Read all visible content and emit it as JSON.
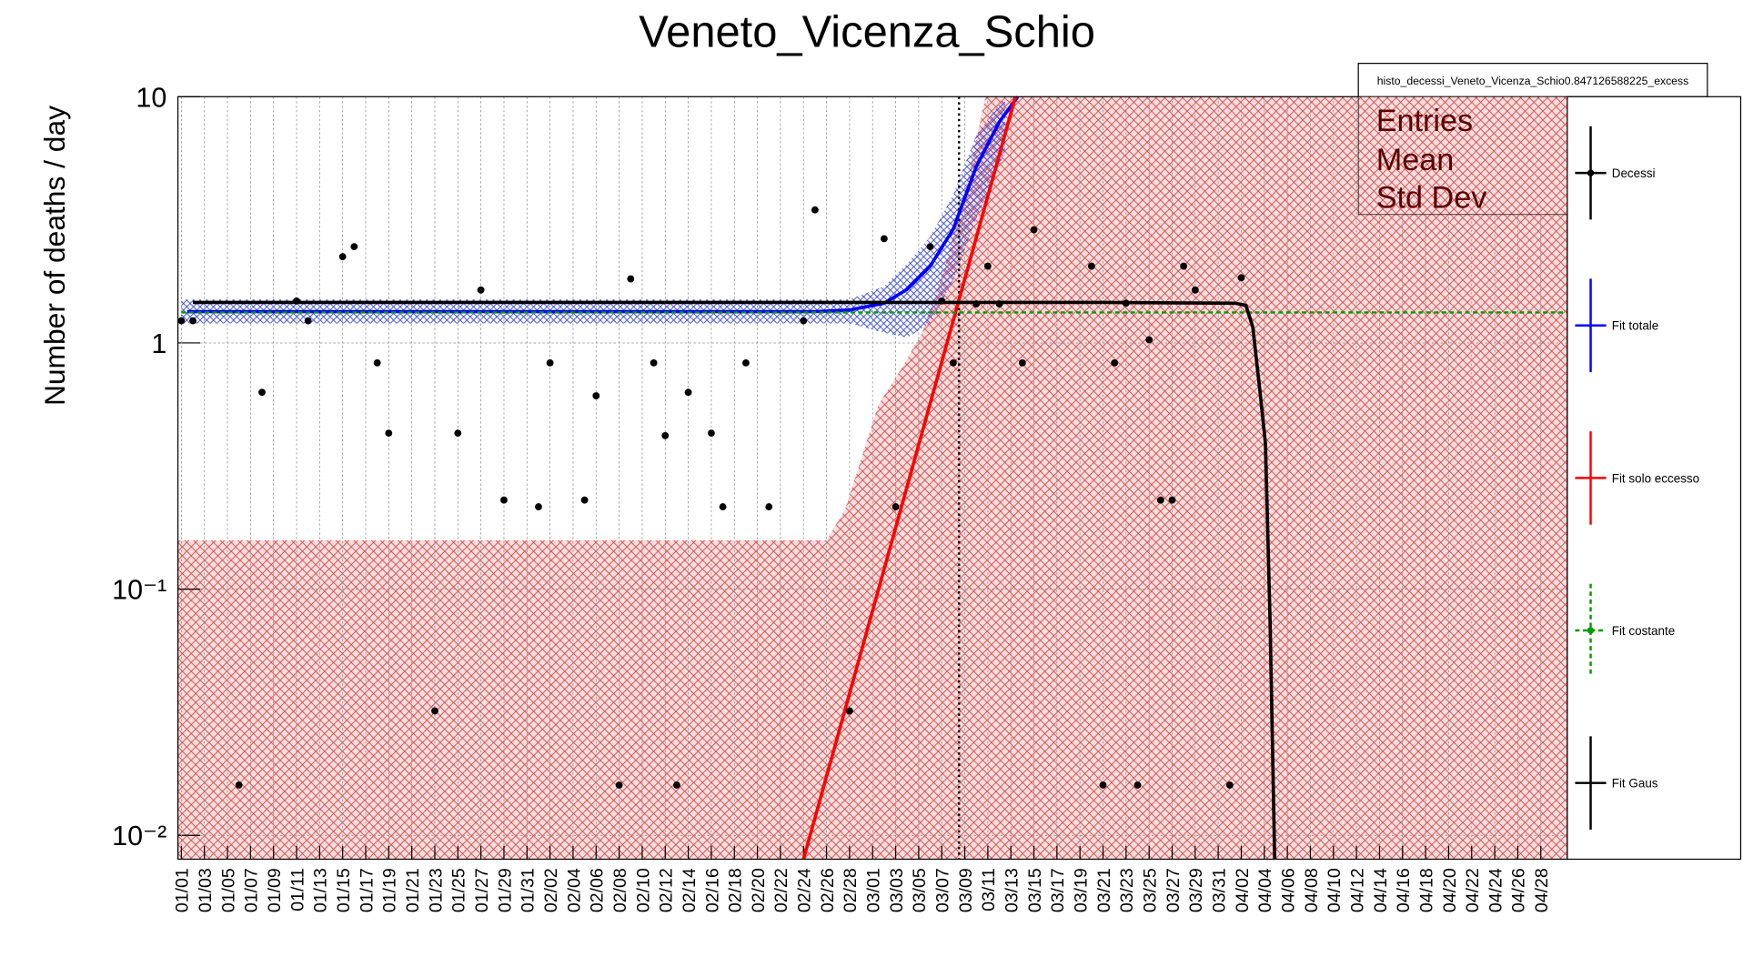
{
  "chart_data": {
    "type": "scatter",
    "title": "Veneto_Vicenza_Schio",
    "y_label": "Number of deaths / day",
    "log_y": true,
    "grid": true,
    "legend_position": "right",
    "xlim": [
      -0.3,
      120.3
    ],
    "ylim": [
      0.008,
      10
    ],
    "yticks": [
      {
        "value": 0.01,
        "label": "10⁻²"
      },
      {
        "value": 0.1,
        "label": "10⁻¹"
      },
      1,
      10
    ],
    "xticks": [
      {
        "value": 0,
        "label": "01/01"
      },
      {
        "value": 2,
        "label": "01/03"
      },
      {
        "value": 4,
        "label": "01/05"
      },
      {
        "value": 6,
        "label": "01/07"
      },
      {
        "value": 8,
        "label": "01/09"
      },
      {
        "value": 10,
        "label": "01/11"
      },
      {
        "value": 12,
        "label": "01/13"
      },
      {
        "value": 14,
        "label": "01/15"
      },
      {
        "value": 16,
        "label": "01/17"
      },
      {
        "value": 18,
        "label": "01/19"
      },
      {
        "value": 20,
        "label": "01/21"
      },
      {
        "value": 22,
        "label": "01/23"
      },
      {
        "value": 24,
        "label": "01/25"
      },
      {
        "value": 26,
        "label": "01/27"
      },
      {
        "value": 28,
        "label": "01/29"
      },
      {
        "value": 30,
        "label": "01/31"
      },
      {
        "value": 32,
        "label": "02/02"
      },
      {
        "value": 34,
        "label": "02/04"
      },
      {
        "value": 36,
        "label": "02/06"
      },
      {
        "value": 38,
        "label": "02/08"
      },
      {
        "value": 40,
        "label": "02/10"
      },
      {
        "value": 42,
        "label": "02/12"
      },
      {
        "value": 44,
        "label": "02/14"
      },
      {
        "value": 46,
        "label": "02/16"
      },
      {
        "value": 48,
        "label": "02/18"
      },
      {
        "value": 50,
        "label": "02/20"
      },
      {
        "value": 52,
        "label": "02/22"
      },
      {
        "value": 54,
        "label": "02/24"
      },
      {
        "value": 56,
        "label": "02/26"
      },
      {
        "value": 58,
        "label": "02/28"
      },
      {
        "value": 60,
        "label": "03/01"
      },
      {
        "value": 62,
        "label": "03/03"
      },
      {
        "value": 64,
        "label": "03/05"
      },
      {
        "value": 66,
        "label": "03/07"
      },
      {
        "value": 68,
        "label": "03/09"
      },
      {
        "value": 70,
        "label": "03/11"
      },
      {
        "value": 72,
        "label": "03/13"
      },
      {
        "value": 74,
        "label": "03/15"
      },
      {
        "value": 76,
        "label": "03/17"
      },
      {
        "value": 78,
        "label": "03/19"
      },
      {
        "value": 80,
        "label": "03/21"
      },
      {
        "value": 82,
        "label": "03/23"
      },
      {
        "value": 84,
        "label": "03/25"
      },
      {
        "value": 86,
        "label": "03/27"
      },
      {
        "value": 88,
        "label": "03/29"
      },
      {
        "value": 90,
        "label": "03/31"
      },
      {
        "value": 92,
        "label": "04/02"
      },
      {
        "value": 94,
        "label": "04/04"
      },
      {
        "value": 96,
        "label": "04/06"
      },
      {
        "value": 98,
        "label": "04/08"
      },
      {
        "value": 100,
        "label": "04/10"
      },
      {
        "value": 102,
        "label": "04/12"
      },
      {
        "value": 104,
        "label": "04/14"
      },
      {
        "value": 106,
        "label": "04/16"
      },
      {
        "value": 108,
        "label": "04/18"
      },
      {
        "value": 110,
        "label": "04/20"
      },
      {
        "value": 112,
        "label": "04/22"
      },
      {
        "value": 114,
        "label": "04/24"
      },
      {
        "value": 116,
        "label": "04/26"
      },
      {
        "value": 118,
        "label": "04/28"
      }
    ],
    "bands": [
      {
        "color": "#d03030",
        "x": [
          -0.3,
          56,
          57.6,
          60.5,
          62.6,
          64.3,
          66.3,
          68.3,
          69.8,
          120.3
        ],
        "upper": [
          0.158,
          0.158,
          0.21,
          0.56,
          0.8,
          1.1,
          2.05,
          4.7,
          10,
          10
        ]
      },
      {
        "color": "#3040d0",
        "x": [
          0,
          20,
          40,
          58,
          61,
          63,
          65,
          67,
          69,
          71.5
        ],
        "upper": [
          1.5,
          1.5,
          1.5,
          1.5,
          1.7,
          2.1,
          2.7,
          4,
          7,
          10
        ],
        "lower": [
          1.2,
          1.2,
          1.2,
          1.2,
          1.1,
          1.05,
          1.2,
          1.8,
          3.2,
          6
        ]
      }
    ],
    "vline": 67.5,
    "series": [
      {
        "name": "Decessi",
        "style": "points",
        "color": "#000000",
        "x": [
          0,
          1,
          5,
          7,
          10,
          11,
          14,
          15,
          17,
          18,
          22,
          24,
          26,
          28,
          31,
          32,
          35,
          36,
          38,
          39,
          41,
          42,
          43,
          44,
          46,
          47,
          49,
          51,
          54,
          55,
          58,
          61,
          62,
          65,
          66,
          67,
          69,
          70,
          71,
          73,
          74,
          79,
          80,
          81,
          82,
          83,
          84,
          85,
          86,
          87,
          88,
          91,
          92
        ],
        "values": [
          1.23,
          1.23,
          0.016,
          0.63,
          1.48,
          1.23,
          2.24,
          2.46,
          0.83,
          0.43,
          0.032,
          0.43,
          1.64,
          0.23,
          0.216,
          0.83,
          0.23,
          0.61,
          0.016,
          1.82,
          0.83,
          0.42,
          0.016,
          0.63,
          0.43,
          0.216,
          0.83,
          0.216,
          1.23,
          3.47,
          0.032,
          2.65,
          0.216,
          2.46,
          1.48,
          0.83,
          1.44,
          2.05,
          1.44,
          0.83,
          2.88,
          2.05,
          0.016,
          0.83,
          1.45,
          0.016,
          1.03,
          0.23,
          0.23,
          2.05,
          1.64,
          0.016,
          1.84
        ]
      },
      {
        "name": "Fit totale",
        "style": "line",
        "color": "#0000ff",
        "x": [
          0.5,
          20,
          40,
          55,
          58,
          61,
          63,
          65,
          67,
          69,
          71,
          72.6
        ],
        "values": [
          1.34,
          1.34,
          1.34,
          1.34,
          1.36,
          1.45,
          1.65,
          2.05,
          2.9,
          5.2,
          7.9,
          10
        ]
      },
      {
        "name": "Fit solo eccesso",
        "style": "line",
        "color": "#ff0000",
        "x": [
          54,
          72.4
        ],
        "values": [
          0.008,
          10
        ]
      },
      {
        "name": "Fit costante",
        "style": "dashed",
        "color": "#009900",
        "x": [
          0,
          120.3
        ],
        "values": [
          1.33,
          1.33
        ]
      },
      {
        "name": "Fit Gaus",
        "style": "line",
        "color": "#000000",
        "x": [
          1,
          40,
          80,
          91.5,
          92.4,
          93,
          93.6,
          94.1,
          94.5,
          94.9
        ],
        "values": [
          1.46,
          1.46,
          1.46,
          1.45,
          1.42,
          1.16,
          0.65,
          0.39,
          0.074,
          0.008
        ]
      }
    ],
    "stats_box": {
      "title": "histo_decessi_Veneto_Vicenza_Schio0.847126588225_excess",
      "labels": [
        "Entries",
        "Mean",
        "Std Dev"
      ]
    }
  }
}
